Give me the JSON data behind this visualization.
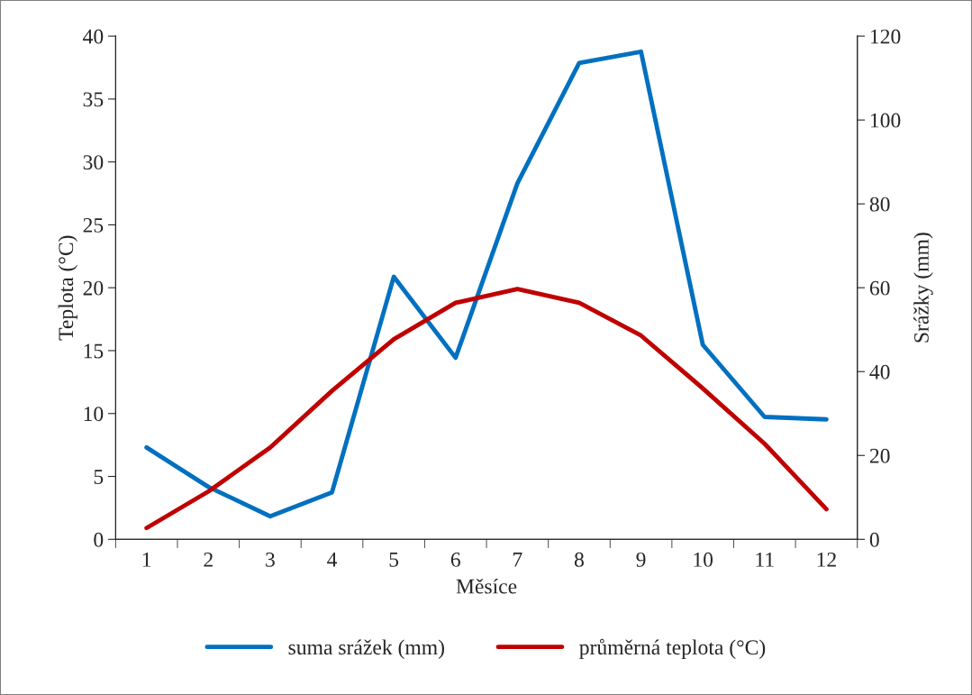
{
  "chart_data": {
    "type": "line",
    "xlabel": "Měsíce",
    "ylabel": "Teplota (°C)",
    "y2label": "Srážky (mm)",
    "categories": [
      "1",
      "2",
      "3",
      "4",
      "5",
      "6",
      "7",
      "8",
      "9",
      "10",
      "11",
      "12"
    ],
    "series": [
      {
        "name": "suma srážek (mm)",
        "color": "#0070c0",
        "axis": "y2",
        "values": [
          21.9,
          12.5,
          5.5,
          11.2,
          62.6,
          43.3,
          84.9,
          113.6,
          116.3,
          46.4,
          29.2,
          28.6
        ]
      },
      {
        "name": "průměrná teplota (°C)",
        "color": "#c00000",
        "values": [
          0.9,
          3.8,
          7.3,
          11.8,
          15.9,
          18.8,
          19.9,
          18.8,
          16.2,
          12.0,
          7.6,
          2.4
        ]
      }
    ],
    "ylim": [
      0,
      40
    ],
    "yticks": [
      0,
      5,
      10,
      15,
      20,
      25,
      30,
      35,
      40
    ],
    "y2lim": [
      0,
      120
    ],
    "y2ticks": [
      0,
      20,
      40,
      60,
      80,
      100,
      120
    ],
    "grid": false,
    "legend": "bottom",
    "marker": "none",
    "line_style": "solid"
  }
}
